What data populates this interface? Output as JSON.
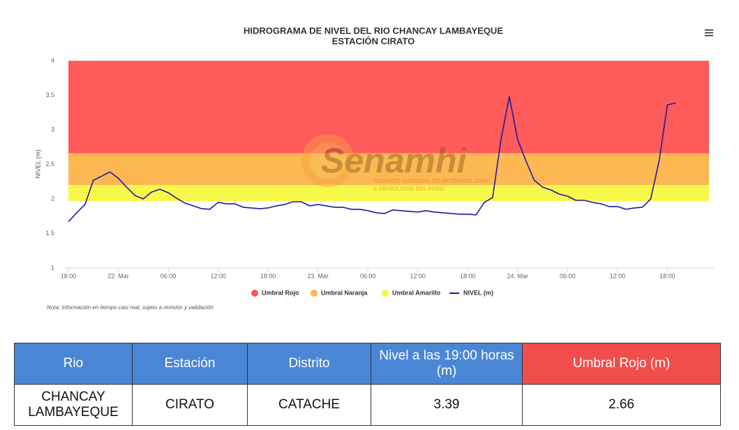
{
  "chart_data": {
    "type": "line",
    "title": "HIDROGRAMA DE NIVEL DEL RIO CHANCAY LAMBAYEQUE",
    "subtitle": "ESTACIÓN CIRATO",
    "y_label": "NIVEL (m)",
    "note": "Nota: Información en tiempo casi real, sujeto a revisión y validación",
    "watermark": {
      "name": "Senamhi",
      "line1": "SERVICIO NACIONAL DE METEOROLOGÍA",
      "line2": "E HIDROLOGÍA DEL PERÚ"
    },
    "xlim": [
      0,
      77
    ],
    "xticks": [
      {
        "value": 0,
        "label": "18:00"
      },
      {
        "value": 6,
        "label": "22. Mar"
      },
      {
        "value": 12,
        "label": "06:00"
      },
      {
        "value": 18,
        "label": "12:00"
      },
      {
        "value": 24,
        "label": "18:00"
      },
      {
        "value": 30,
        "label": "23. Mar"
      },
      {
        "value": 36,
        "label": "06:00"
      },
      {
        "value": 42,
        "label": "12:00"
      },
      {
        "value": 48,
        "label": "18:00"
      },
      {
        "value": 54,
        "label": "24. Mar"
      },
      {
        "value": 60,
        "label": "06:00"
      },
      {
        "value": 66,
        "label": "12:00"
      },
      {
        "value": 72,
        "label": "18:00"
      }
    ],
    "ylim": [
      1,
      4
    ],
    "yticks": [
      1,
      1.5,
      2,
      2.5,
      3,
      3.5,
      4
    ],
    "bands": [
      {
        "name": "Umbral Rojo",
        "color": "#ff5252",
        "from": 2.66,
        "to": 4
      },
      {
        "name": "Umbral Naranja",
        "color": "#fdb44b",
        "from": 2.2,
        "to": 2.66
      },
      {
        "name": "Umbral Amarillo",
        "color": "#f8f840",
        "from": 1.97,
        "to": 2.2
      }
    ],
    "x": [
      0,
      1,
      2,
      3,
      4,
      5,
      6,
      7,
      8,
      9,
      10,
      11,
      12,
      13,
      14,
      15,
      16,
      17,
      18,
      19,
      20,
      21,
      22,
      23,
      24,
      25,
      26,
      27,
      28,
      29,
      30,
      31,
      32,
      33,
      34,
      35,
      36,
      37,
      38,
      39,
      40,
      41,
      42,
      43,
      44,
      45,
      46,
      47,
      48,
      49,
      50,
      51,
      52,
      53,
      54,
      55,
      56,
      57,
      58,
      59,
      60,
      61,
      62,
      63,
      64,
      65,
      66,
      67,
      68,
      69,
      70,
      71,
      72,
      73
    ],
    "series": [
      {
        "name": "NIVEL (m)",
        "color": "#1c1ca0",
        "values": [
          1.67,
          1.8,
          1.92,
          2.27,
          2.33,
          2.39,
          2.3,
          2.17,
          2.05,
          2.0,
          2.1,
          2.14,
          2.09,
          2.01,
          1.94,
          1.9,
          1.86,
          1.85,
          1.95,
          1.93,
          1.93,
          1.88,
          1.87,
          1.86,
          1.87,
          1.9,
          1.92,
          1.96,
          1.96,
          1.9,
          1.92,
          1.9,
          1.88,
          1.88,
          1.85,
          1.85,
          1.83,
          1.8,
          1.79,
          1.84,
          1.83,
          1.82,
          1.81,
          1.83,
          1.81,
          1.8,
          1.79,
          1.78,
          1.78,
          1.77,
          1.95,
          2.02,
          2.86,
          3.48,
          2.86,
          2.55,
          2.27,
          2.17,
          2.13,
          2.07,
          2.04,
          1.98,
          1.98,
          1.95,
          1.93,
          1.89,
          1.89,
          1.85,
          1.87,
          1.88,
          2.0,
          2.55,
          3.36,
          3.39
        ]
      }
    ]
  },
  "table": {
    "headers": [
      "Rio",
      "Estación",
      "Distrito",
      "Nivel a las 19:00 horas (m)",
      "Umbral Rojo (m)"
    ],
    "rows": [
      [
        "CHANCAY LAMBAYEQUE",
        "CIRATO",
        "CATACHE",
        3.39,
        2.66
      ]
    ]
  }
}
